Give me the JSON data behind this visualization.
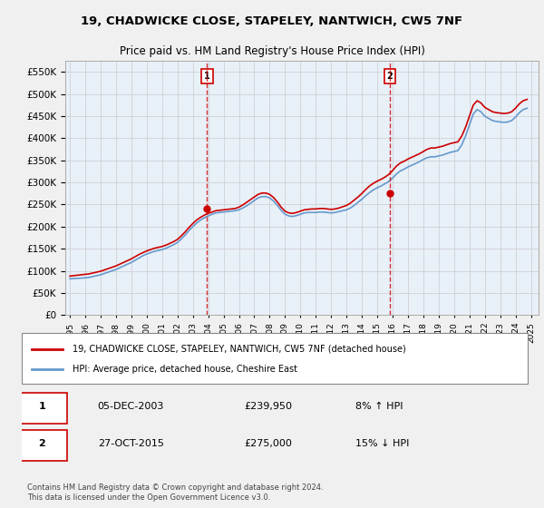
{
  "title": "19, CHADWICKE CLOSE, STAPELEY, NANTWICH, CW5 7NF",
  "subtitle": "Price paid vs. HM Land Registry's House Price Index (HPI)",
  "ylabel_ticks": [
    "£0",
    "£50K",
    "£100K",
    "£150K",
    "£200K",
    "£250K",
    "£300K",
    "£350K",
    "£400K",
    "£450K",
    "£500K",
    "£550K"
  ],
  "ytick_values": [
    0,
    50000,
    100000,
    150000,
    200000,
    250000,
    300000,
    350000,
    400000,
    450000,
    500000,
    550000
  ],
  "ylim": [
    0,
    575000
  ],
  "xlim_start": 1995.0,
  "xlim_end": 2025.5,
  "xtick_years": [
    1995,
    1996,
    1997,
    1998,
    1999,
    2000,
    2001,
    2002,
    2003,
    2004,
    2005,
    2006,
    2007,
    2008,
    2009,
    2010,
    2011,
    2012,
    2013,
    2014,
    2015,
    2016,
    2017,
    2018,
    2019,
    2020,
    2021,
    2022,
    2023,
    2024,
    2025
  ],
  "sale1_x": 2003.92,
  "sale1_y": 239950,
  "sale1_label": "1",
  "sale1_date": "05-DEC-2003",
  "sale1_price": "£239,950",
  "sale1_hpi": "8% ↑ HPI",
  "sale2_x": 2015.83,
  "sale2_y": 275000,
  "sale2_label": "2",
  "sale2_date": "27-OCT-2015",
  "sale2_price": "£275,000",
  "sale2_hpi": "15% ↓ HPI",
  "line_color_price": "#cc0000",
  "line_color_hpi": "#6699cc",
  "background_color": "#e8f0f8",
  "plot_bg": "#ffffff",
  "grid_color": "#cccccc",
  "legend_label_price": "19, CHADWICKE CLOSE, STAPELEY, NANTWICH, CW5 7NF (detached house)",
  "legend_label_hpi": "HPI: Average price, detached house, Cheshire East",
  "footer": "Contains HM Land Registry data © Crown copyright and database right 2024.\nThis data is licensed under the Open Government Licence v3.0.",
  "hpi_data_x": [
    1995.0,
    1995.25,
    1995.5,
    1995.75,
    1996.0,
    1996.25,
    1996.5,
    1996.75,
    1997.0,
    1997.25,
    1997.5,
    1997.75,
    1998.0,
    1998.25,
    1998.5,
    1998.75,
    1999.0,
    1999.25,
    1999.5,
    1999.75,
    2000.0,
    2000.25,
    2000.5,
    2000.75,
    2001.0,
    2001.25,
    2001.5,
    2001.75,
    2002.0,
    2002.25,
    2002.5,
    2002.75,
    2003.0,
    2003.25,
    2003.5,
    2003.75,
    2004.0,
    2004.25,
    2004.5,
    2004.75,
    2005.0,
    2005.25,
    2005.5,
    2005.75,
    2006.0,
    2006.25,
    2006.5,
    2006.75,
    2007.0,
    2007.25,
    2007.5,
    2007.75,
    2008.0,
    2008.25,
    2008.5,
    2008.75,
    2009.0,
    2009.25,
    2009.5,
    2009.75,
    2010.0,
    2010.25,
    2010.5,
    2010.75,
    2011.0,
    2011.25,
    2011.5,
    2011.75,
    2012.0,
    2012.25,
    2012.5,
    2012.75,
    2013.0,
    2013.25,
    2013.5,
    2013.75,
    2014.0,
    2014.25,
    2014.5,
    2014.75,
    2015.0,
    2015.25,
    2015.5,
    2015.75,
    2016.0,
    2016.25,
    2016.5,
    2016.75,
    2017.0,
    2017.25,
    2017.5,
    2017.75,
    2018.0,
    2018.25,
    2018.5,
    2018.75,
    2019.0,
    2019.25,
    2019.5,
    2019.75,
    2020.0,
    2020.25,
    2020.5,
    2020.75,
    2021.0,
    2021.25,
    2021.5,
    2021.75,
    2022.0,
    2022.25,
    2022.5,
    2022.75,
    2023.0,
    2023.25,
    2023.5,
    2023.75,
    2024.0,
    2024.25,
    2024.5,
    2024.75
  ],
  "hpi_data_y": [
    82000,
    82500,
    83000,
    83500,
    84000,
    85000,
    87000,
    89000,
    91000,
    94000,
    97000,
    100000,
    103000,
    107000,
    111000,
    115000,
    119000,
    124000,
    129000,
    134000,
    138000,
    141000,
    144000,
    146000,
    148000,
    151000,
    155000,
    159000,
    164000,
    172000,
    181000,
    191000,
    200000,
    208000,
    215000,
    220000,
    224000,
    228000,
    231000,
    232000,
    233000,
    234000,
    235000,
    236000,
    238000,
    242000,
    247000,
    253000,
    259000,
    265000,
    268000,
    268000,
    265000,
    258000,
    248000,
    237000,
    228000,
    224000,
    223000,
    225000,
    228000,
    231000,
    232000,
    232000,
    232000,
    233000,
    233000,
    232000,
    231000,
    232000,
    234000,
    236000,
    238000,
    242000,
    248000,
    255000,
    262000,
    270000,
    277000,
    283000,
    288000,
    292000,
    297000,
    302000,
    310000,
    319000,
    326000,
    330000,
    335000,
    339000,
    343000,
    347000,
    352000,
    356000,
    358000,
    358000,
    360000,
    362000,
    365000,
    368000,
    370000,
    372000,
    385000,
    405000,
    430000,
    455000,
    465000,
    460000,
    450000,
    445000,
    440000,
    438000,
    437000,
    436000,
    437000,
    440000,
    448000,
    458000,
    465000,
    468000
  ],
  "price_data_x": [
    1995.0,
    1995.25,
    1995.5,
    1995.75,
    1996.0,
    1996.25,
    1996.5,
    1996.75,
    1997.0,
    1997.25,
    1997.5,
    1997.75,
    1998.0,
    1998.25,
    1998.5,
    1998.75,
    1999.0,
    1999.25,
    1999.5,
    1999.75,
    2000.0,
    2000.25,
    2000.5,
    2000.75,
    2001.0,
    2001.25,
    2001.5,
    2001.75,
    2002.0,
    2002.25,
    2002.5,
    2002.75,
    2003.0,
    2003.25,
    2003.5,
    2003.75,
    2004.0,
    2004.25,
    2004.5,
    2004.75,
    2005.0,
    2005.25,
    2005.5,
    2005.75,
    2006.0,
    2006.25,
    2006.5,
    2006.75,
    2007.0,
    2007.25,
    2007.5,
    2007.75,
    2008.0,
    2008.25,
    2008.5,
    2008.75,
    2009.0,
    2009.25,
    2009.5,
    2009.75,
    2010.0,
    2010.25,
    2010.5,
    2010.75,
    2011.0,
    2011.25,
    2011.5,
    2011.75,
    2012.0,
    2012.25,
    2012.5,
    2012.75,
    2013.0,
    2013.25,
    2013.5,
    2013.75,
    2014.0,
    2014.25,
    2014.5,
    2014.75,
    2015.0,
    2015.25,
    2015.5,
    2015.75,
    2016.0,
    2016.25,
    2016.5,
    2016.75,
    2017.0,
    2017.25,
    2017.5,
    2017.75,
    2018.0,
    2018.25,
    2018.5,
    2018.75,
    2019.0,
    2019.25,
    2019.5,
    2019.75,
    2020.0,
    2020.25,
    2020.5,
    2020.75,
    2021.0,
    2021.25,
    2021.5,
    2021.75,
    2022.0,
    2022.25,
    2022.5,
    2022.75,
    2023.0,
    2023.25,
    2023.5,
    2023.75,
    2024.0,
    2024.25,
    2024.5,
    2024.75
  ],
  "price_data_y": [
    88000,
    89000,
    90000,
    91000,
    92000,
    93000,
    95000,
    97000,
    99000,
    102000,
    105000,
    108000,
    111000,
    115000,
    119000,
    123000,
    127000,
    132000,
    137000,
    141000,
    145000,
    148000,
    151000,
    153000,
    155000,
    158000,
    162000,
    166000,
    171000,
    179000,
    188000,
    198000,
    207000,
    215000,
    221000,
    226000,
    230000,
    233000,
    236000,
    237000,
    238000,
    239000,
    240000,
    241000,
    244000,
    249000,
    255000,
    261000,
    267000,
    273000,
    276000,
    276000,
    273000,
    266000,
    256000,
    244000,
    235000,
    231000,
    230000,
    232000,
    235000,
    238000,
    239000,
    240000,
    240000,
    241000,
    241000,
    240000,
    239000,
    240000,
    242000,
    245000,
    248000,
    253000,
    260000,
    267000,
    275000,
    284000,
    292000,
    298000,
    303000,
    307000,
    312000,
    318000,
    327000,
    337000,
    344000,
    348000,
    353000,
    357000,
    361000,
    365000,
    370000,
    375000,
    378000,
    378000,
    380000,
    382000,
    385000,
    388000,
    390000,
    392000,
    405000,
    425000,
    450000,
    475000,
    485000,
    480000,
    470000,
    465000,
    460000,
    458000,
    457000,
    456000,
    457000,
    460000,
    468000,
    478000,
    485000,
    488000
  ]
}
